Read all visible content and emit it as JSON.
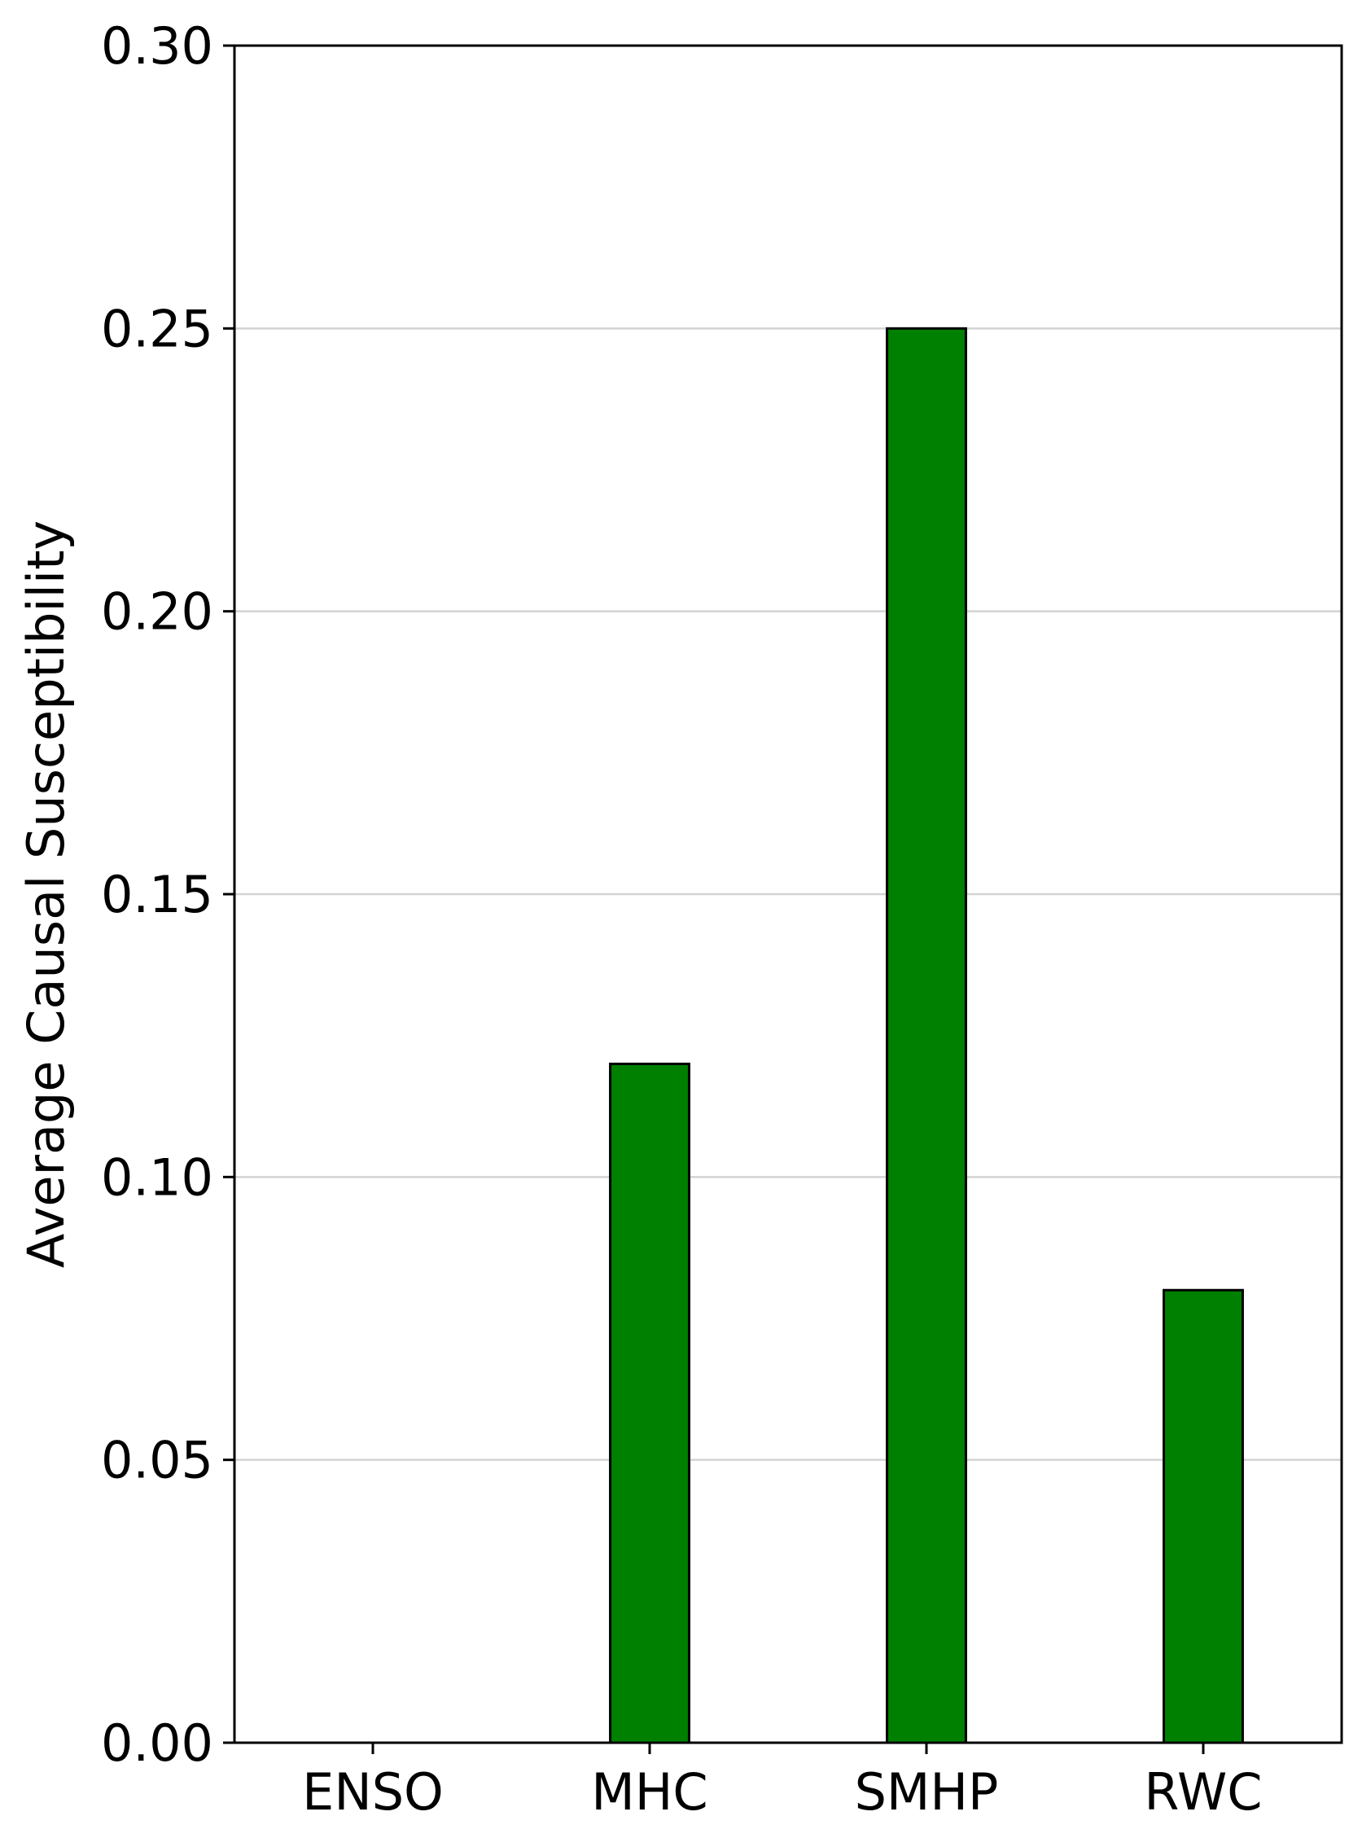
{
  "chart_data": {
    "type": "bar",
    "title": "",
    "xlabel": "",
    "ylabel": "Average Causal Susceptibility",
    "categories": [
      "ENSO",
      "MHC",
      "SMHP",
      "RWC"
    ],
    "values": [
      0.0,
      0.12,
      0.25,
      0.08
    ],
    "ylim": [
      0,
      0.3
    ],
    "yticks": [
      "0.00",
      "0.05",
      "0.10",
      "0.15",
      "0.20",
      "0.25",
      "0.30"
    ],
    "grid": "horizontal",
    "colors": {
      "bar_fill": "#008000",
      "bar_edge": "#000000",
      "grid": "#d3d3d3",
      "axis": "#000000"
    }
  }
}
